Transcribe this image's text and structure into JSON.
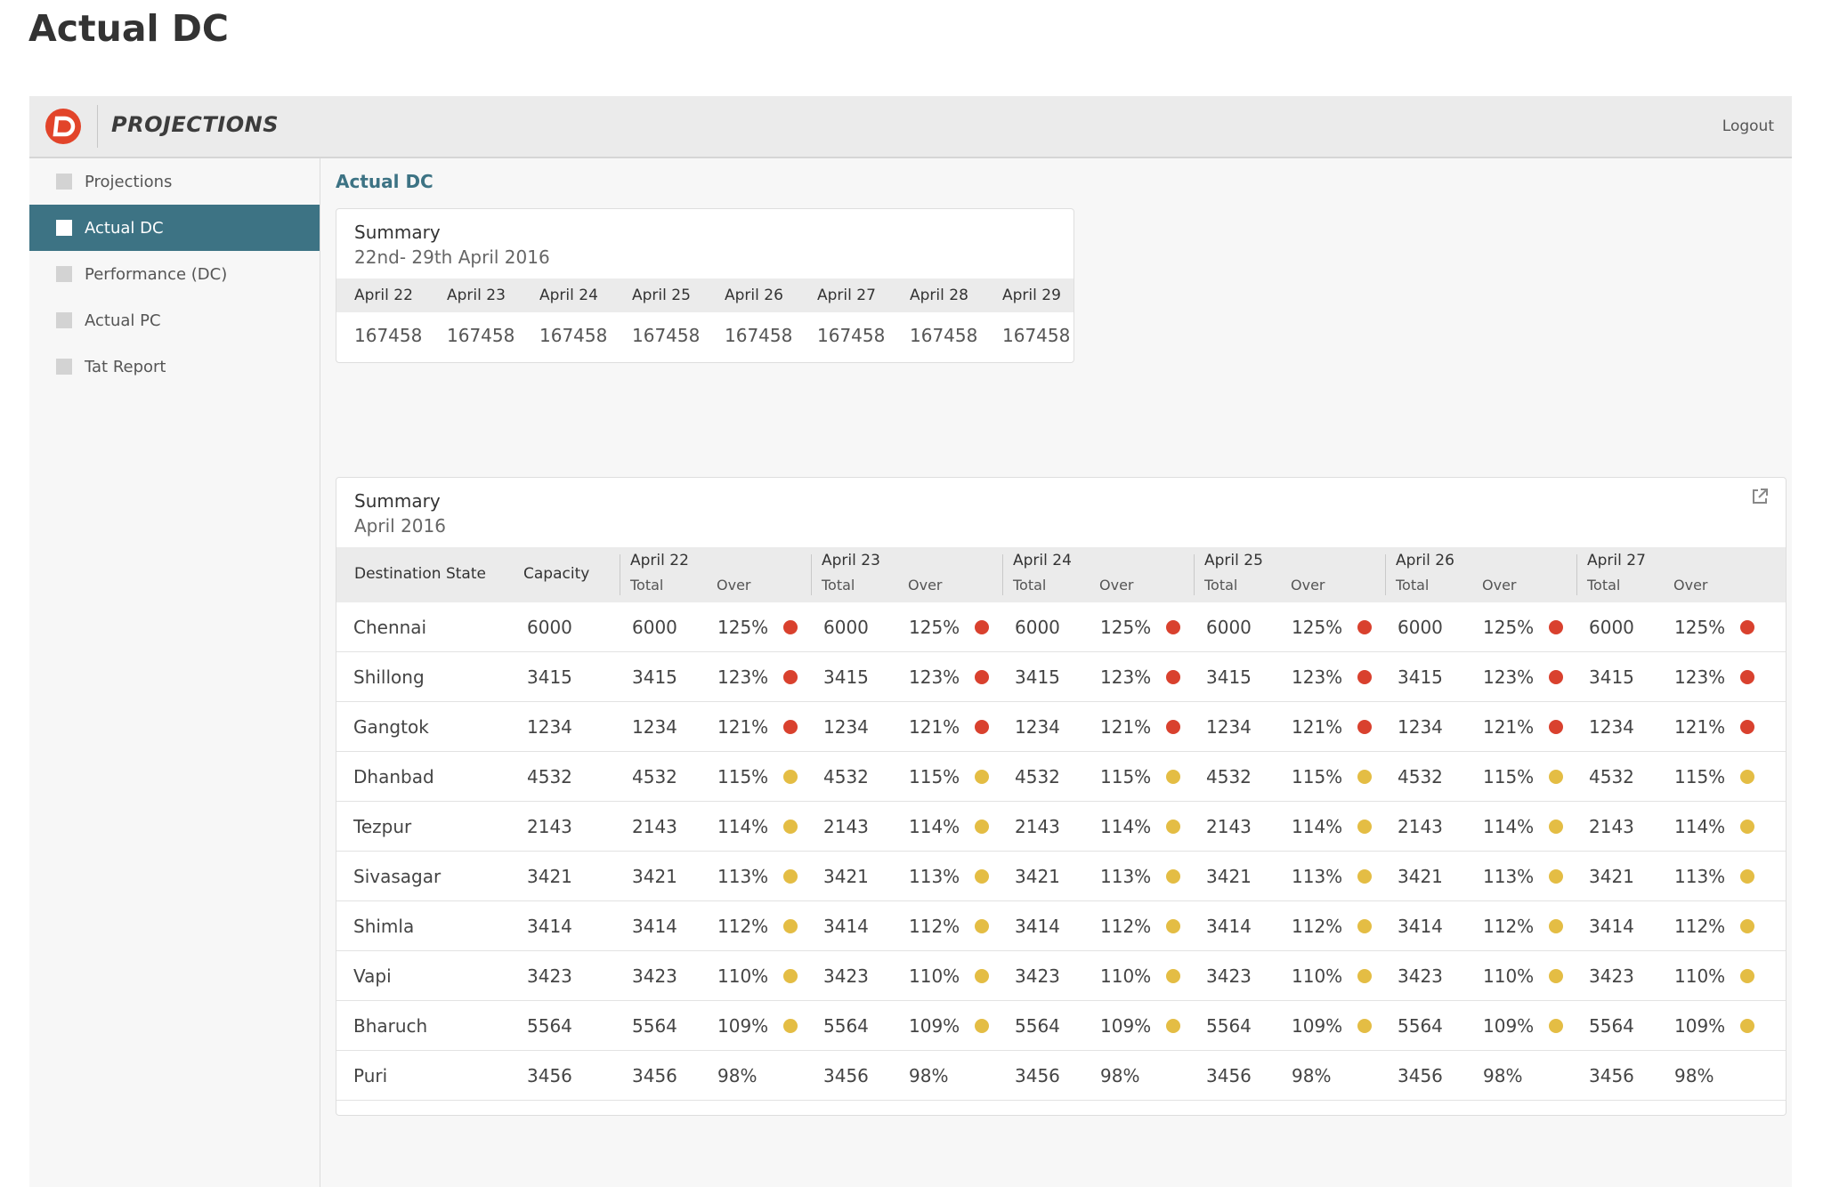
{
  "page_title": "Actual DC",
  "app": {
    "brand": "PROJECTIONS",
    "logout_label": "Logout"
  },
  "sidebar": {
    "items": [
      {
        "label": "Projections",
        "active": false
      },
      {
        "label": "Actual DC",
        "active": true
      },
      {
        "label": "Performance (DC)",
        "active": false
      },
      {
        "label": "Actual PC",
        "active": false
      },
      {
        "label": "Tat Report",
        "active": false
      }
    ]
  },
  "content": {
    "title": "Actual DC"
  },
  "summary_week": {
    "title": "Summary",
    "subtitle": "22nd- 29th April 2016",
    "days": [
      "April 22",
      "April 23",
      "April 24",
      "April 25",
      "April 26",
      "April 27",
      "April 28",
      "April 29"
    ],
    "values": [
      "167458",
      "167458",
      "167458",
      "167458",
      "167458",
      "167458",
      "167458",
      "167458"
    ]
  },
  "summary_month": {
    "title": "Summary",
    "subtitle": "April 2016",
    "col_destination": "Destination State",
    "col_capacity": "Capacity",
    "sub_total": "Total",
    "sub_over": "Over",
    "dates": [
      "April 22",
      "April 23",
      "April 24",
      "April 25",
      "April 26",
      "April 27"
    ],
    "status_colors": {
      "red": "#d9412e",
      "yellow": "#e4bd44"
    },
    "rows": [
      {
        "state": "Chennai",
        "capacity": "6000",
        "total": "6000",
        "over": "125%",
        "status": "red"
      },
      {
        "state": "Shillong",
        "capacity": "3415",
        "total": "3415",
        "over": "123%",
        "status": "red"
      },
      {
        "state": "Gangtok",
        "capacity": "1234",
        "total": "1234",
        "over": "121%",
        "status": "red"
      },
      {
        "state": "Dhanbad",
        "capacity": "4532",
        "total": "4532",
        "over": "115%",
        "status": "yellow"
      },
      {
        "state": "Tezpur",
        "capacity": "2143",
        "total": "2143",
        "over": "114%",
        "status": "yellow"
      },
      {
        "state": "Sivasagar",
        "capacity": "3421",
        "total": "3421",
        "over": "113%",
        "status": "yellow"
      },
      {
        "state": "Shimla",
        "capacity": "3414",
        "total": "3414",
        "over": "112%",
        "status": "yellow"
      },
      {
        "state": "Vapi",
        "capacity": "3423",
        "total": "3423",
        "over": "110%",
        "status": "yellow"
      },
      {
        "state": "Bharuch",
        "capacity": "5564",
        "total": "5564",
        "over": "109%",
        "status": "yellow"
      },
      {
        "state": "Puri",
        "capacity": "3456",
        "total": "3456",
        "over": "98%",
        "status": "none"
      }
    ]
  }
}
